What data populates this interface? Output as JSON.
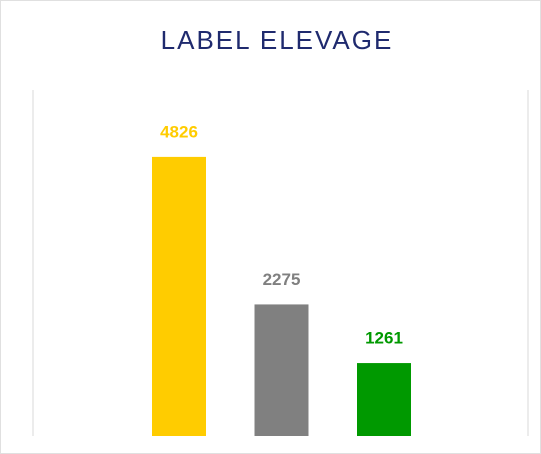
{
  "chart_data": {
    "type": "bar",
    "title": "LABEL ELEVAGE",
    "categories": [
      null,
      null,
      null
    ],
    "values": [
      4826,
      2275,
      1261
    ],
    "colors": [
      "#ffcc00",
      "#808080",
      "#009900"
    ],
    "ylim": [
      0,
      6000
    ]
  }
}
